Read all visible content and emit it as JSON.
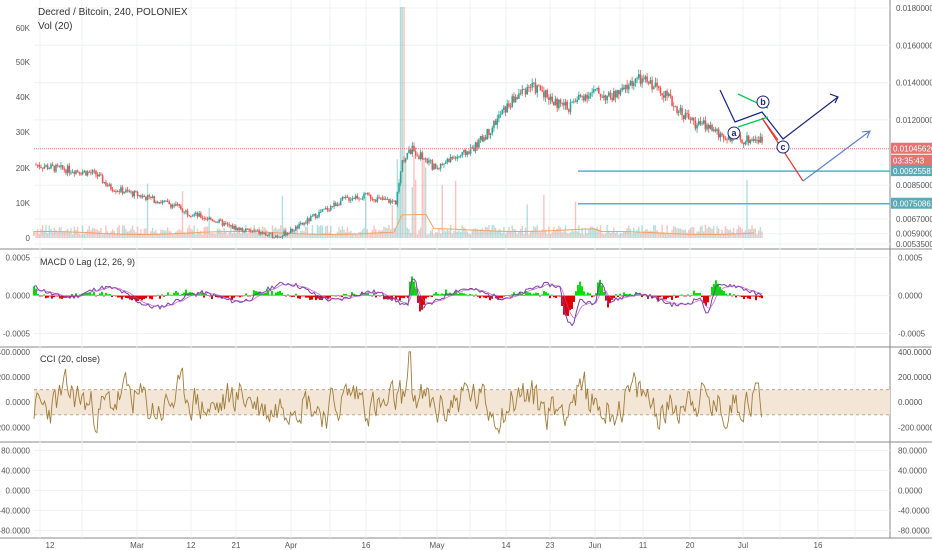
{
  "header": {
    "title": "Decred / Bitcoin, 240, POLONIEX",
    "volume_label": "Vol (20)"
  },
  "panes": {
    "macd_label": "MACD 0 Lag (12, 26, 9)",
    "cci_label": "CCI (20, close)"
  },
  "colors": {
    "up": "#26a69a",
    "down": "#ef5350",
    "macd": "#7b3fa0",
    "signal": "#b24ad1",
    "hist_up": "#00e000",
    "hist_down": "#e00000",
    "cci": "#a07c3a",
    "cci_band": "#f3e6d6",
    "wave": "#1a237e",
    "target": "#5c7fc4",
    "level": "#4db6c8",
    "price_line": "#e57373"
  },
  "chart_data": [
    {
      "type": "candlestick",
      "title": "Decred / Bitcoin, 240, POLONIEX",
      "x_ticks": [
        "12",
        "Mar",
        "12",
        "21",
        "Apr",
        "16",
        "May",
        "14",
        "23",
        "Jun",
        "11",
        "20",
        "Jul",
        "16"
      ],
      "y_right_ticks": [
        "0.01800000",
        "0.01600000",
        "0.01400000",
        "0.01200000",
        "0.01045626",
        "03:35:43",
        "0.00925587",
        "0.00850000",
        "0.00750861",
        "0.00670000",
        "0.00590000",
        "0.00535000"
      ],
      "y_left_ticks": [
        "60K",
        "50K",
        "40K",
        "30K",
        "20K",
        "10K",
        "0"
      ],
      "close_path": [
        [
          0,
          0.0096
        ],
        [
          6,
          0.0094
        ],
        [
          12,
          0.0093
        ],
        [
          18,
          0.0091
        ],
        [
          22,
          0.0084
        ],
        [
          28,
          0.0081
        ],
        [
          34,
          0.0078
        ],
        [
          38,
          0.0076
        ],
        [
          42,
          0.0074
        ],
        [
          46,
          0.007
        ],
        [
          50,
          0.0068
        ],
        [
          54,
          0.0066
        ],
        [
          58,
          0.0063
        ],
        [
          62,
          0.0061
        ],
        [
          66,
          0.006
        ],
        [
          70,
          0.0058
        ],
        [
          73,
          0.0058
        ],
        [
          76,
          0.006
        ],
        [
          80,
          0.0064
        ],
        [
          84,
          0.0069
        ],
        [
          88,
          0.0073
        ],
        [
          92,
          0.0077
        ],
        [
          96,
          0.0079
        ],
        [
          100,
          0.0079
        ],
        [
          104,
          0.0077
        ],
        [
          108,
          0.0076
        ],
        [
          110,
          0.0099
        ],
        [
          113,
          0.0104
        ],
        [
          116,
          0.01
        ],
        [
          120,
          0.0094
        ],
        [
          124,
          0.0099
        ],
        [
          128,
          0.0101
        ],
        [
          132,
          0.0106
        ],
        [
          136,
          0.0114
        ],
        [
          140,
          0.0124
        ],
        [
          144,
          0.0132
        ],
        [
          148,
          0.0138
        ],
        [
          152,
          0.0136
        ],
        [
          156,
          0.0129
        ],
        [
          160,
          0.0127
        ],
        [
          164,
          0.0133
        ],
        [
          168,
          0.0135
        ],
        [
          172,
          0.0132
        ],
        [
          176,
          0.0135
        ],
        [
          180,
          0.0142
        ],
        [
          184,
          0.014
        ],
        [
          188,
          0.0136
        ],
        [
          192,
          0.0127
        ],
        [
          196,
          0.0121
        ],
        [
          198,
          0.0118
        ],
        [
          202,
          0.0117
        ],
        [
          205,
          0.0112
        ],
        [
          208,
          0.0111
        ],
        [
          212,
          0.0109
        ],
        [
          216,
          0.011
        ],
        [
          218,
          0.0109
        ]
      ],
      "price_line": 0.01045626,
      "horizontal_levels": [
        0.00925587,
        0.00750861
      ],
      "wave_labels": [
        "a",
        "b",
        "c"
      ]
    },
    {
      "type": "bar",
      "title": "Vol (20)"
    },
    {
      "type": "line",
      "title": "MACD 0 Lag (12, 26, 9)",
      "y_ticks": [
        "0.0005",
        "0.0000",
        "-0.0005"
      ],
      "ylim": [
        -0.00065,
        0.0006
      ]
    },
    {
      "type": "line",
      "title": "CCI (20, close)",
      "y_ticks": [
        "400.0000",
        "200.0000",
        "0.0000",
        "-200.0000"
      ],
      "band": [
        -100,
        100
      ],
      "ylim": [
        -300,
        430
      ]
    },
    {
      "type": "line",
      "title": "",
      "y_ticks": [
        "80.0000",
        "40.0000",
        "0.0000",
        "-40.0000",
        "-80.0000"
      ],
      "ylim": [
        -95,
        95
      ]
    }
  ]
}
